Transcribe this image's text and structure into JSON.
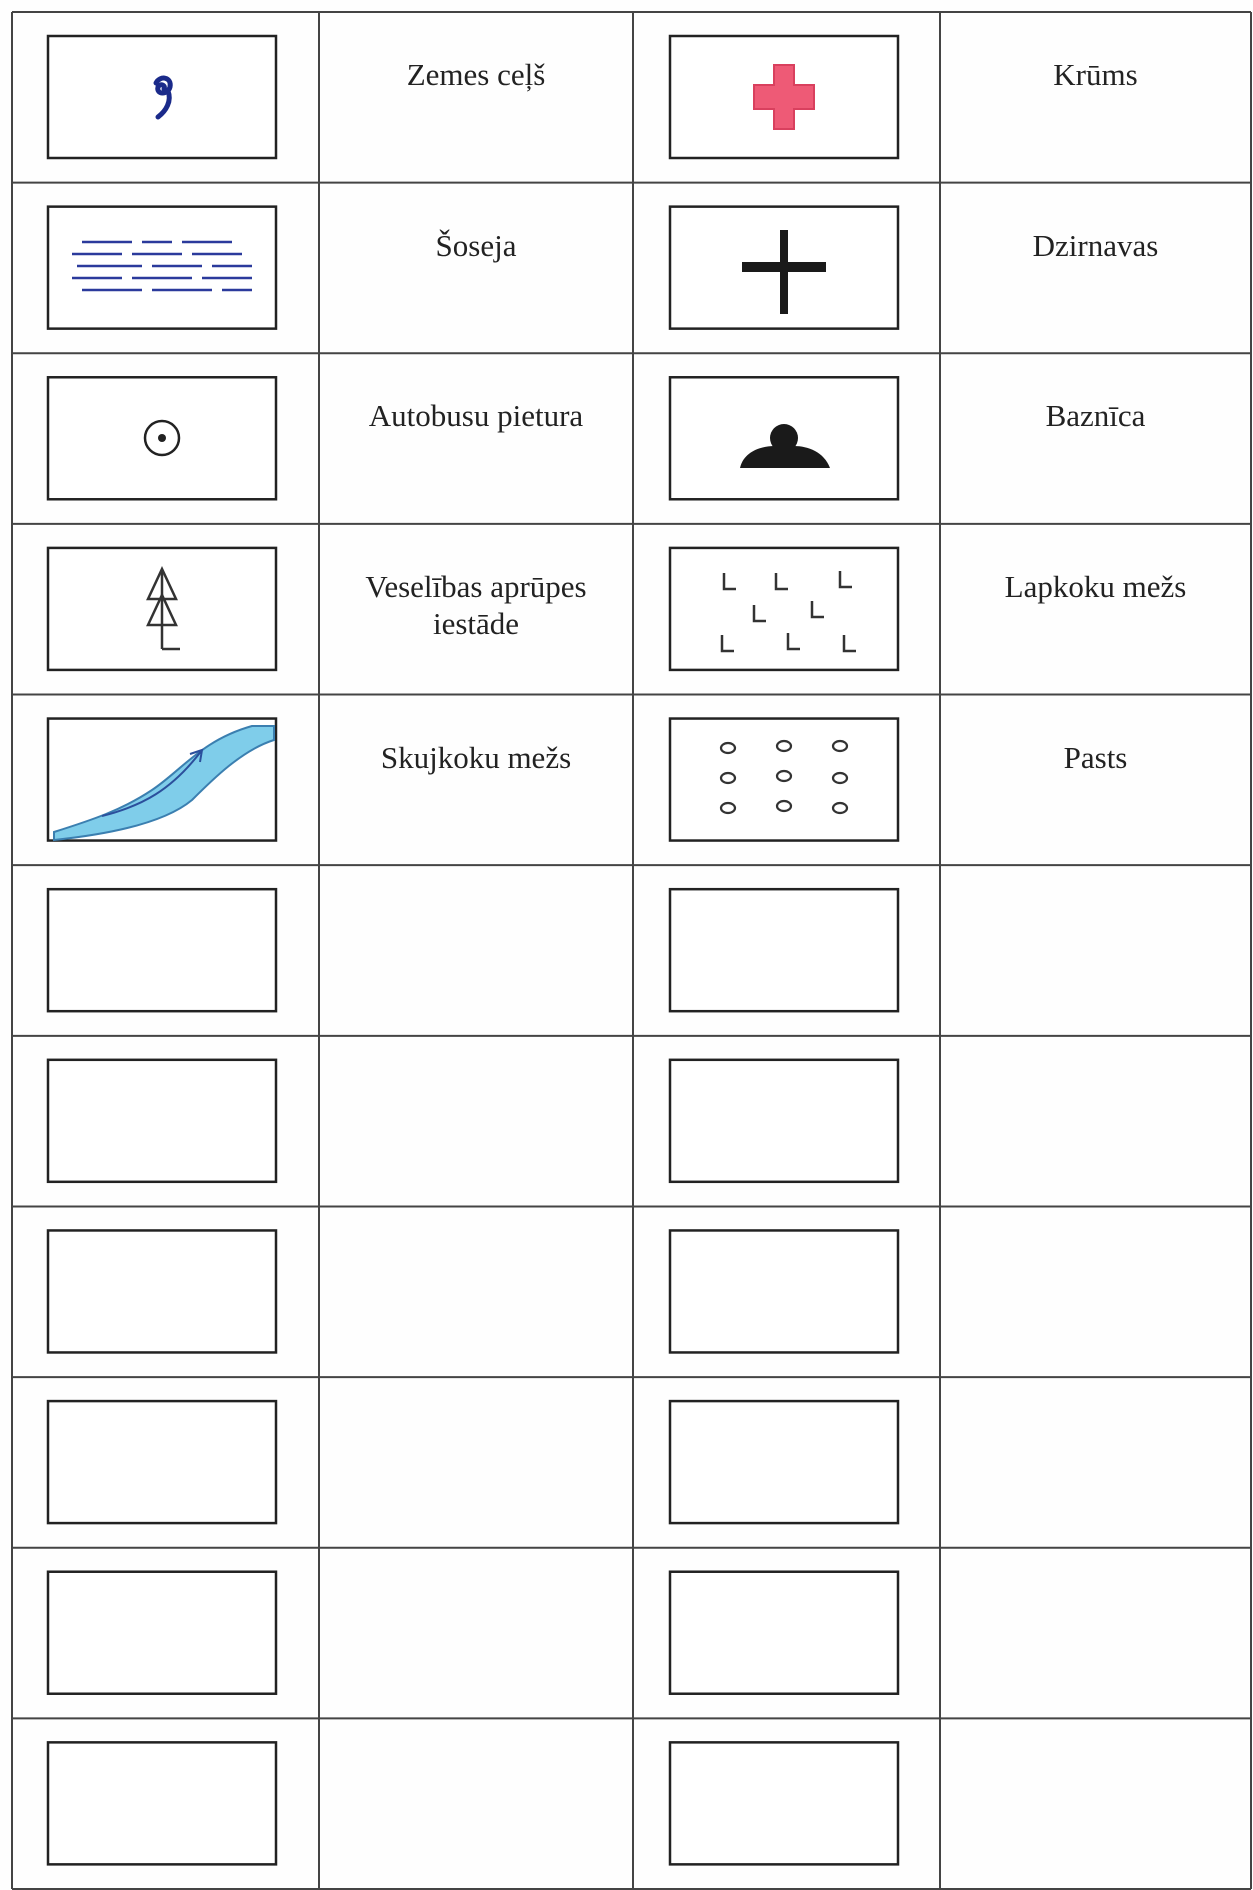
{
  "table": {
    "rows": [
      [
        "Zemes ceļš",
        "Krūms"
      ],
      [
        "Šoseja",
        "Dzirnavas"
      ],
      [
        "Autobusu pietura",
        "Baznīca"
      ],
      [
        "Veselības aprūpes iestāde",
        "Lapkoku mežs"
      ],
      [
        "Skujkoku mežs",
        "Pasts"
      ]
    ]
  }
}
